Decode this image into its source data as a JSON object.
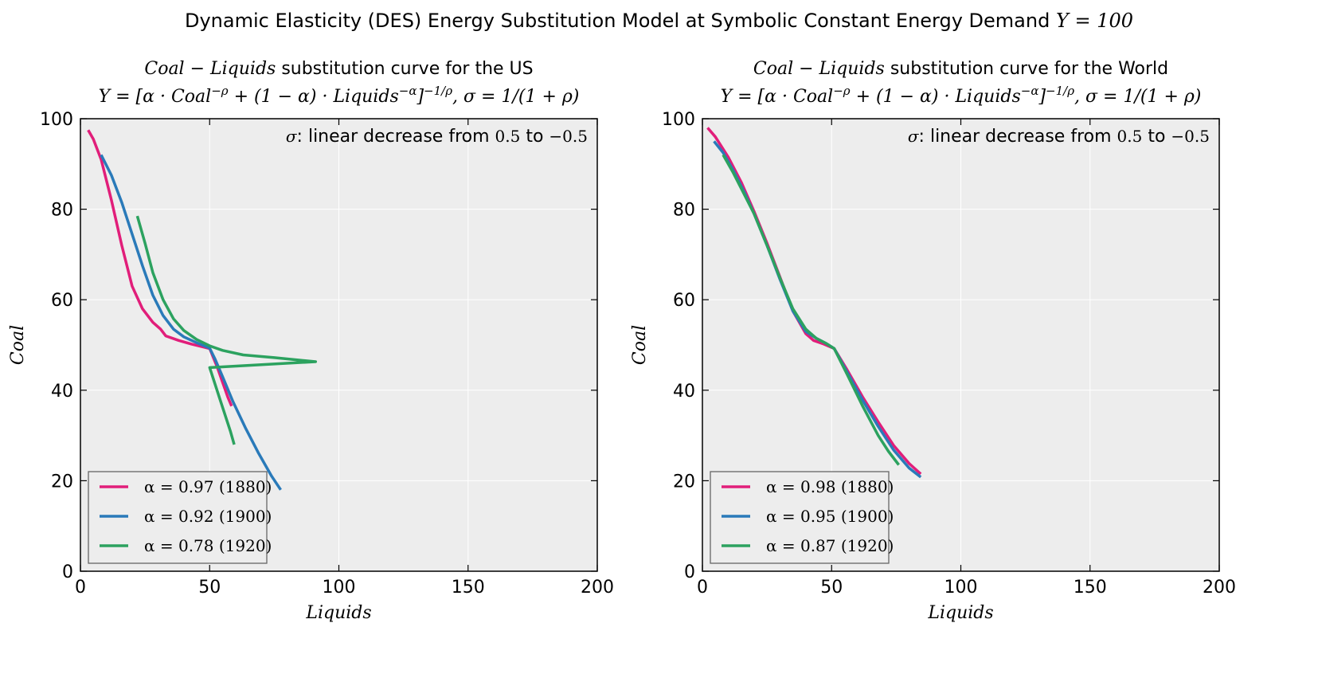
{
  "figure": {
    "suptitle": "Dynamic Elasticity (DES) Energy Substitution Model at Symbolic Constant Energy Demand",
    "suptitle_math": "Y = 100"
  },
  "chart_data": [
    {
      "type": "line",
      "title_math": "Coal − Liquids",
      "title_text": "substitution curve for the US",
      "subtitle_formula": "Y = [α · Coal^−ρ + (1 − α) · Liquids^−α]^−1/ρ, σ = 1/(1 + ρ)",
      "annotation": {
        "symbol": "σ",
        "text": ": linear decrease from",
        "from": "0.5",
        "to_word": "to",
        "to": "−0.5"
      },
      "xlabel": "Liquids",
      "ylabel": "Coal",
      "xlim": [
        0,
        200
      ],
      "ylim": [
        0,
        100
      ],
      "xticks": [
        "0",
        "50",
        "100",
        "150",
        "200"
      ],
      "yticks": [
        "0",
        "20",
        "40",
        "60",
        "80",
        "100"
      ],
      "grid": true,
      "legend_position": "lower-left",
      "series": [
        {
          "name": "α = 0.97 (1880)",
          "color": "#e11e7a",
          "points": [
            [
              3,
              97.5
            ],
            [
              5,
              95.5
            ],
            [
              8,
              91
            ],
            [
              12,
              82
            ],
            [
              16,
              72
            ],
            [
              20,
              63
            ],
            [
              24,
              58
            ],
            [
              28,
              55
            ],
            [
              31,
              53.5
            ],
            [
              33,
              52
            ],
            [
              38,
              51
            ],
            [
              43,
              50.2
            ],
            [
              50,
              49.2
            ],
            [
              53,
              45
            ],
            [
              57,
              38.5
            ],
            [
              58.5,
              36.5
            ]
          ]
        },
        {
          "name": "α = 0.92 (1900)",
          "color": "#2a7ab9",
          "points": [
            [
              8,
              92
            ],
            [
              12,
              87.5
            ],
            [
              16,
              81.5
            ],
            [
              20,
              74.5
            ],
            [
              24,
              67.5
            ],
            [
              28,
              61
            ],
            [
              32,
              56.5
            ],
            [
              36,
              53.5
            ],
            [
              40,
              51.8
            ],
            [
              45,
              50.5
            ],
            [
              50,
              49.3
            ],
            [
              52,
              47
            ],
            [
              55,
              43
            ],
            [
              59,
              37.5
            ],
            [
              64,
              31.5
            ],
            [
              69,
              26
            ],
            [
              74,
              21
            ],
            [
              77.5,
              18
            ]
          ]
        },
        {
          "name": "α = 0.78 (1920)",
          "color": "#2ca25f",
          "points": [
            [
              22,
              78.5
            ],
            [
              25,
              72.5
            ],
            [
              28,
              66
            ],
            [
              32,
              60
            ],
            [
              36,
              55.8
            ],
            [
              40,
              53.2
            ],
            [
              45,
              51.2
            ],
            [
              50,
              49.8
            ],
            [
              55,
              48.8
            ],
            [
              63,
              47.8
            ],
            [
              75,
              47.2
            ],
            [
              91,
              46.3
            ],
            [
              50,
              45
            ],
            [
              54,
              38
            ],
            [
              58,
              31
            ],
            [
              59.5,
              28
            ]
          ]
        }
      ]
    },
    {
      "type": "line",
      "title_math": "Coal − Liquids",
      "title_text": "substitution curve for the World",
      "subtitle_formula": "Y = [α · Coal^−ρ + (1 − α) · Liquids^−α]^−1/ρ, σ = 1/(1 + ρ)",
      "annotation": {
        "symbol": "σ",
        "text": ": linear decrease from",
        "from": "0.5",
        "to_word": "to",
        "to": "−0.5"
      },
      "xlabel": "Liquids",
      "ylabel": "Coal",
      "xlim": [
        0,
        200
      ],
      "ylim": [
        0,
        100
      ],
      "xticks": [
        "0",
        "50",
        "100",
        "150",
        "200"
      ],
      "yticks": [
        "0",
        "20",
        "40",
        "60",
        "80",
        "100"
      ],
      "grid": true,
      "legend_position": "lower-left",
      "series": [
        {
          "name": "α = 0.98 (1880)",
          "color": "#e11e7a",
          "points": [
            [
              2,
              98
            ],
            [
              5,
              96
            ],
            [
              10,
              91.5
            ],
            [
              15,
              86
            ],
            [
              20,
              79.5
            ],
            [
              25,
              72.5
            ],
            [
              30,
              65
            ],
            [
              35,
              57.5
            ],
            [
              40,
              52.5
            ],
            [
              43,
              51
            ],
            [
              47,
              50.2
            ],
            [
              51,
              49.2
            ],
            [
              56,
              44.5
            ],
            [
              62,
              38.5
            ],
            [
              68,
              33
            ],
            [
              74,
              27.8
            ],
            [
              80,
              23.8
            ],
            [
              84.5,
              21.5
            ]
          ]
        },
        {
          "name": "α = 0.95 (1900)",
          "color": "#2a7ab9",
          "points": [
            [
              4.5,
              95
            ],
            [
              8,
              92.5
            ],
            [
              12,
              88.5
            ],
            [
              16,
              84
            ],
            [
              20,
              79
            ],
            [
              25,
              72
            ],
            [
              30,
              64.5
            ],
            [
              35,
              57.5
            ],
            [
              40,
              53
            ],
            [
              44,
              51.5
            ],
            [
              48,
              50.3
            ],
            [
              51,
              49.2
            ],
            [
              56,
              44
            ],
            [
              62,
              37.8
            ],
            [
              68,
              32
            ],
            [
              74,
              26.8
            ],
            [
              80,
              22.8
            ],
            [
              84.5,
              20.8
            ]
          ]
        },
        {
          "name": "α = 0.87 (1920)",
          "color": "#2ca25f",
          "points": [
            [
              8,
              92
            ],
            [
              12,
              88
            ],
            [
              16,
              83.5
            ],
            [
              20,
              79
            ],
            [
              25,
              72
            ],
            [
              30,
              64.8
            ],
            [
              35,
              58
            ],
            [
              40,
              53.5
            ],
            [
              44,
              51.5
            ],
            [
              48,
              50.3
            ],
            [
              51,
              49.2
            ],
            [
              56,
              43.5
            ],
            [
              62,
              36.5
            ],
            [
              68,
              30
            ],
            [
              72,
              26.5
            ],
            [
              76,
              23.5
            ]
          ]
        }
      ]
    }
  ]
}
